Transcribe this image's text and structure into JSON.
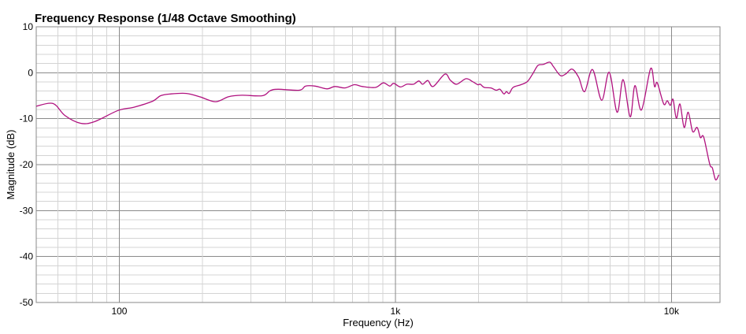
{
  "chart_data": {
    "type": "line",
    "title": "Frequency Response (1/48 Octave Smoothing)",
    "xlabel": "Frequency (Hz)",
    "ylabel": "Magnitude (dB)",
    "xscale": "log",
    "xlim": [
      50,
      15000
    ],
    "ylim": [
      -50,
      10
    ],
    "grid": true,
    "x_ticks": [
      {
        "value": 100,
        "label": "100"
      },
      {
        "value": 1000,
        "label": "1k"
      },
      {
        "value": 10000,
        "label": "10k"
      }
    ],
    "y_ticks": [
      {
        "value": 10,
        "label": "10"
      },
      {
        "value": 0,
        "label": "0"
      },
      {
        "value": -10,
        "label": "-10"
      },
      {
        "value": -20,
        "label": "-20"
      },
      {
        "value": -30,
        "label": "-30"
      },
      {
        "value": -40,
        "label": "-40"
      },
      {
        "value": -50,
        "label": "-50"
      }
    ],
    "series": [
      {
        "name": "Frequency Response",
        "color": "#b0127f",
        "points": [
          [
            50,
            -7.3
          ],
          [
            57.5,
            -6.7
          ],
          [
            63.5,
            -9.3
          ],
          [
            72.4,
            -11
          ],
          [
            81.6,
            -10.6
          ],
          [
            99,
            -8.2
          ],
          [
            113,
            -7.5
          ],
          [
            132,
            -6.2
          ],
          [
            141,
            -5
          ],
          [
            154,
            -4.6
          ],
          [
            175,
            -4.5
          ],
          [
            195,
            -5.2
          ],
          [
            223,
            -6.3
          ],
          [
            249,
            -5.2
          ],
          [
            278,
            -4.9
          ],
          [
            330,
            -5
          ],
          [
            352,
            -3.9
          ],
          [
            376,
            -3.6
          ],
          [
            449,
            -3.8
          ],
          [
            473,
            -2.9
          ],
          [
            512,
            -2.9
          ],
          [
            565,
            -3.5
          ],
          [
            604,
            -3
          ],
          [
            657,
            -3.3
          ],
          [
            711,
            -2.6
          ],
          [
            759,
            -3
          ],
          [
            847,
            -3.2
          ],
          [
            904,
            -2.2
          ],
          [
            955,
            -2.9
          ],
          [
            986,
            -2.3
          ],
          [
            1042,
            -3.1
          ],
          [
            1101,
            -2.5
          ],
          [
            1164,
            -2.5
          ],
          [
            1216,
            -1.8
          ],
          [
            1256,
            -2.5
          ],
          [
            1312,
            -1.7
          ],
          [
            1371,
            -3
          ],
          [
            1511,
            -0.3
          ],
          [
            1581,
            -1.6
          ],
          [
            1668,
            -2.5
          ],
          [
            1802,
            -1.3
          ],
          [
            1901,
            -1.9
          ],
          [
            1988,
            -2.6
          ],
          [
            2031,
            -2.5
          ],
          [
            2099,
            -3.2
          ],
          [
            2218,
            -3.3
          ],
          [
            2317,
            -3.8
          ],
          [
            2393,
            -3.6
          ],
          [
            2472,
            -4.6
          ],
          [
            2527,
            -4.1
          ],
          [
            2585,
            -4.5
          ],
          [
            2670,
            -3.2
          ],
          [
            2851,
            -2.6
          ],
          [
            3011,
            -1.9
          ],
          [
            3147,
            -0.2
          ],
          [
            3286,
            1.6
          ],
          [
            3434,
            1.8
          ],
          [
            3626,
            2.3
          ],
          [
            3746,
            1.25
          ],
          [
            3958,
            -0.6
          ],
          [
            4134,
            -0.3
          ],
          [
            4368,
            0.8
          ],
          [
            4613,
            -1.0
          ],
          [
            4851,
            -4.1
          ],
          [
            5180,
            0.7
          ],
          [
            5590,
            -6.0
          ],
          [
            5955,
            0.1
          ],
          [
            6360,
            -8.6
          ],
          [
            6683,
            -1.5
          ],
          [
            7090,
            -9.6
          ],
          [
            7375,
            -2.8
          ],
          [
            7790,
            -8.1
          ],
          [
            8410,
            0.9
          ],
          [
            8690,
            -3.0
          ],
          [
            8890,
            -2.2
          ],
          [
            9380,
            -6.8
          ],
          [
            9660,
            -6.1
          ],
          [
            9910,
            -7.1
          ],
          [
            10140,
            -5.8
          ],
          [
            10420,
            -9.9
          ],
          [
            10740,
            -6.8
          ],
          [
            11120,
            -11.9
          ],
          [
            11500,
            -8.6
          ],
          [
            11940,
            -12.8
          ],
          [
            12390,
            -11.9
          ],
          [
            12740,
            -14.1
          ],
          [
            13090,
            -14
          ],
          [
            13770,
            -19.9
          ],
          [
            14070,
            -20.7
          ],
          [
            14460,
            -23.3
          ],
          [
            14860,
            -22.2
          ]
        ]
      }
    ]
  }
}
